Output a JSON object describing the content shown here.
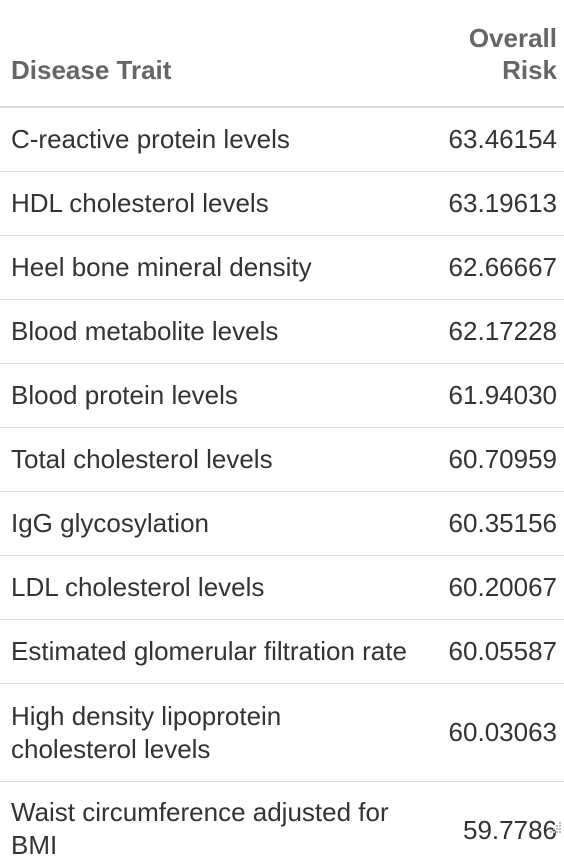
{
  "table": {
    "headers": {
      "trait": "Disease Trait",
      "risk_line1": "Overall",
      "risk_line2": "Risk"
    },
    "rows": [
      {
        "trait": "C-reactive protein levels",
        "risk": "63.46154"
      },
      {
        "trait": "HDL cholesterol levels",
        "risk": "63.19613"
      },
      {
        "trait": "Heel bone mineral density",
        "risk": "62.66667"
      },
      {
        "trait": "Blood metabolite levels",
        "risk": "62.17228"
      },
      {
        "trait": "Blood protein levels",
        "risk": "61.94030"
      },
      {
        "trait": "Total cholesterol levels",
        "risk": "60.70959"
      },
      {
        "trait": "IgG glycosylation",
        "risk": "60.35156"
      },
      {
        "trait": "LDL cholesterol levels",
        "risk": "60.20067"
      },
      {
        "trait": "Estimated glomerular filtration rate",
        "risk": "60.05587"
      },
      {
        "trait": "High density lipoprotein cholesterol levels",
        "risk": "60.03063"
      },
      {
        "trait": "Waist circumference adjusted for BMI",
        "risk": "59.7786"
      }
    ]
  }
}
